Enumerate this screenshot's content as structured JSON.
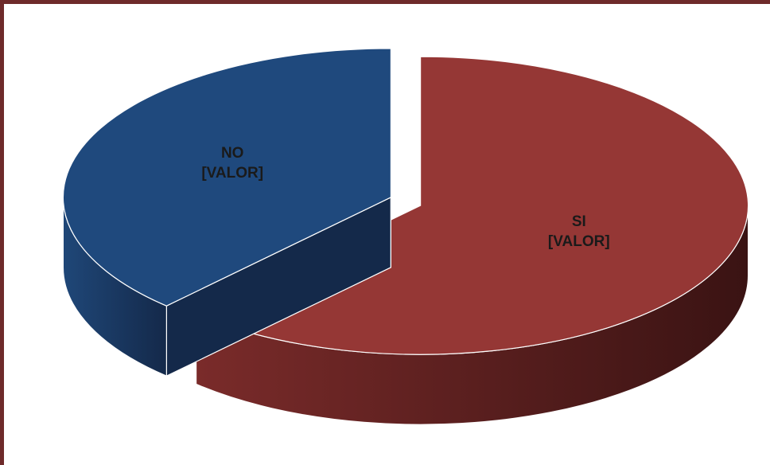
{
  "chart_data": {
    "type": "pie3d",
    "categories": [
      "SI",
      "NO"
    ],
    "values": [
      62,
      38
    ],
    "value_labels": [
      "[VALOR]",
      "[VALOR]"
    ],
    "colors": [
      "#953735",
      "#1f497d"
    ],
    "side_colors": [
      [
        "#7a2b2a",
        "#3a1313"
      ],
      [
        "#1f4778",
        "#14294a"
      ]
    ],
    "exploded": true
  }
}
